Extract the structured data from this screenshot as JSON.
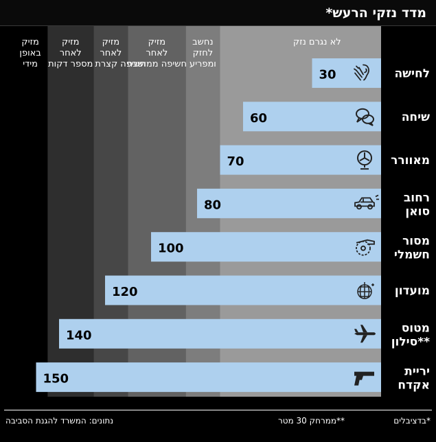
{
  "title": "מדד נזקי הרעש*",
  "footnotes": {
    "source": "נתונים: המשרד להגנת הסביבה",
    "note1": "*בדציבלים",
    "note2": "**ממרחק 30 מטר"
  },
  "chart_data": {
    "type": "bar",
    "orientation": "horizontal",
    "unit": "דציבלים",
    "xlim": [
      0,
      160
    ],
    "categories": [
      "לחישה",
      "שיחה",
      "מאוורר",
      "רחוב סואן",
      "מסור חשמלי",
      "מועדון",
      "מטוס סילון**",
      "יריית אקדח"
    ],
    "values": [
      30,
      60,
      70,
      80,
      100,
      120,
      140,
      150
    ],
    "icons": [
      "whisper-icon",
      "speech-bubbles-icon",
      "fan-icon",
      "car-icon",
      "circular-saw-icon",
      "disco-ball-icon",
      "airplane-icon",
      "pistol-icon"
    ],
    "zones": [
      {
        "label": "לא נגרם נזק",
        "from": 0,
        "to": 70,
        "color": "#9a9a9a"
      },
      {
        "label": "נחשב לחזק ומפריע",
        "from": 70,
        "to": 85,
        "color": "#7d7d7d"
      },
      {
        "label": "מזיק לאחר חשיפה ממושכת",
        "from": 85,
        "to": 110,
        "color": "#626262"
      },
      {
        "label": "מזיק לאחר חשיפה קצרת טווח",
        "from": 110,
        "to": 125,
        "color": "#474747"
      },
      {
        "label": "מזיק לאחר מספר דקות",
        "from": 125,
        "to": 145,
        "color": "#2e2e2e"
      },
      {
        "label": "מזיק באופן מידי",
        "from": 145,
        "to": 160,
        "color": "#000000"
      }
    ],
    "colors": {
      "bar": "#aed0ee",
      "text": "#000000",
      "label": "#ffffff"
    }
  }
}
